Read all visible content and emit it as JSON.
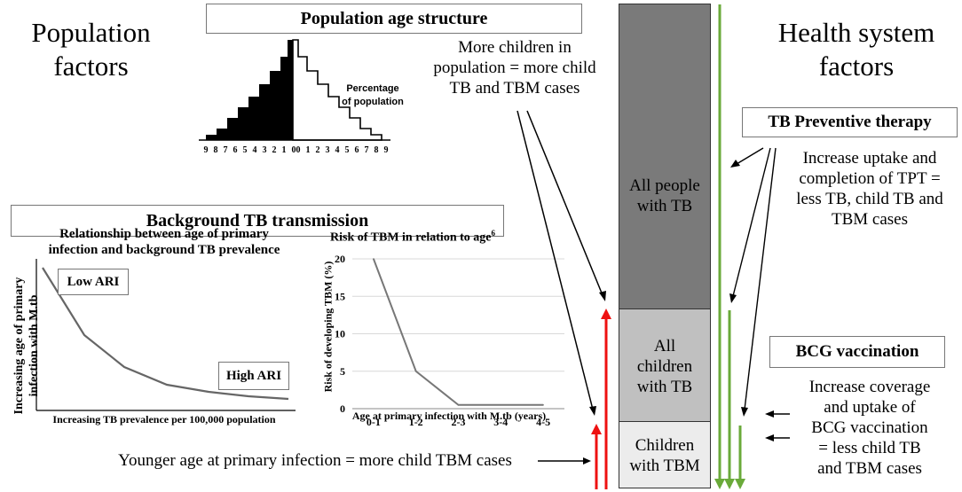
{
  "population_factors": {
    "line1": "Population",
    "line2": "factors"
  },
  "health_factors": {
    "line1": "Health system",
    "line2": "factors"
  },
  "age_structure": {
    "title": "Population age structure",
    "pyramid_label_1": "Percentage",
    "pyramid_label_2": "of population",
    "ticks": [
      "9",
      "8",
      "7",
      "6",
      "5",
      "4",
      "3",
      "2",
      "1",
      "0",
      "0",
      "1",
      "2",
      "3",
      "4",
      "5",
      "6",
      "7",
      "8",
      "9"
    ],
    "note": [
      "More children in",
      "population = more child",
      "TB and TBM cases"
    ]
  },
  "background": {
    "title": "Background TB transmission",
    "chart1": {
      "title_1": "Relationship between age of primary",
      "title_2": "infection and background TB prevalence",
      "ylabel_1": "Increasing age of primary",
      "ylabel_2": "infection with M.tb",
      "xlabel": "Increasing TB prevalence per 100,000 population",
      "low_label": "Low ARI",
      "high_label": "High ARI"
    },
    "chart2_title_main": "Risk of TBM in relation to age",
    "chart2_title_sup": "6"
  },
  "chart_data": {
    "type": "line",
    "title": "Risk of TBM in relation to age6",
    "categories": [
      "0-1",
      "1-2",
      "2-3",
      "3-4",
      "4-5"
    ],
    "values": [
      20,
      5,
      0.5,
      0.5,
      0.5
    ],
    "yticks": [
      "0",
      "5",
      "10",
      "15",
      "20"
    ],
    "xlabel": "Age at primary infection with M.tb (years)",
    "ylabel": "Risk of developing TBM (%)",
    "ylim": [
      0,
      20
    ],
    "grid": true
  },
  "bottom_note": "Younger age at primary infection = more child TBM cases",
  "column": {
    "top": [
      "All people",
      "with TB"
    ],
    "mid": [
      "All",
      "children",
      "with TB"
    ],
    "bottom": [
      "Children",
      "with TBM"
    ]
  },
  "tpt": {
    "title": "TB Preventive therapy",
    "text": [
      "Increase uptake and",
      "completion of TPT =",
      "less TB, child TB and",
      "TBM cases"
    ]
  },
  "bcg": {
    "title": "BCG vaccination",
    "text": [
      "Increase coverage",
      "and uptake of",
      "BCG vaccination",
      "= less child TB",
      "and TBM cases"
    ]
  },
  "colors": {
    "red": "#ee1111",
    "green": "#6aaa3a",
    "dark_gray": "#7a7a7a",
    "mid_gray": "#c0c0c0",
    "light_gray": "#ececec"
  }
}
